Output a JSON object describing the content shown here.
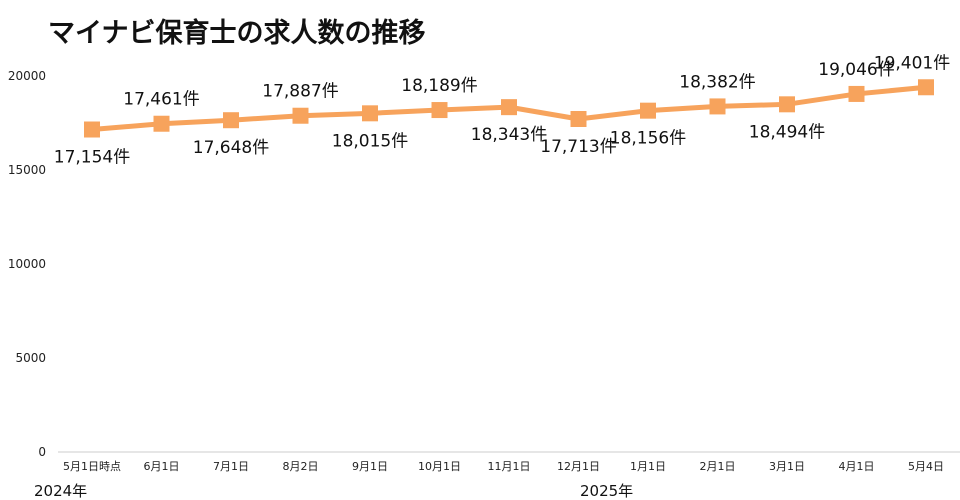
{
  "chart_data": {
    "type": "line",
    "title": "マイナビ保育士の求人数の推移",
    "categories": [
      "5月1日時点",
      "6月1日",
      "7月1日",
      "8月2日",
      "9月1日",
      "10月1日",
      "11月1日",
      "12月1日",
      "1月1日",
      "2月1日",
      "3月1日",
      "4月1日",
      "5月4日"
    ],
    "values": [
      17154,
      17461,
      17648,
      17887,
      18015,
      18189,
      18343,
      17713,
      18156,
      18382,
      18494,
      19046,
      19401
    ],
    "data_labels": [
      "17,154件",
      "17,461件",
      "17,648件",
      "17,887件",
      "18,015件",
      "18,189件",
      "18,343件",
      "17,713件",
      "18,156件",
      "18,382件",
      "18,494件",
      "19,046件",
      "19,401件"
    ],
    "label_positions": [
      "below",
      "above",
      "below",
      "above",
      "below",
      "above",
      "below",
      "below",
      "below",
      "above",
      "below",
      "above",
      "above"
    ],
    "y_ticks": [
      "0",
      "5000",
      "10000",
      "15000",
      "20000"
    ],
    "ylim": [
      0,
      20000
    ],
    "year_labels": [
      "2024年",
      "2025年"
    ],
    "grid": false,
    "legend": "none",
    "series_color": "#F7A35C",
    "marker": "square"
  }
}
